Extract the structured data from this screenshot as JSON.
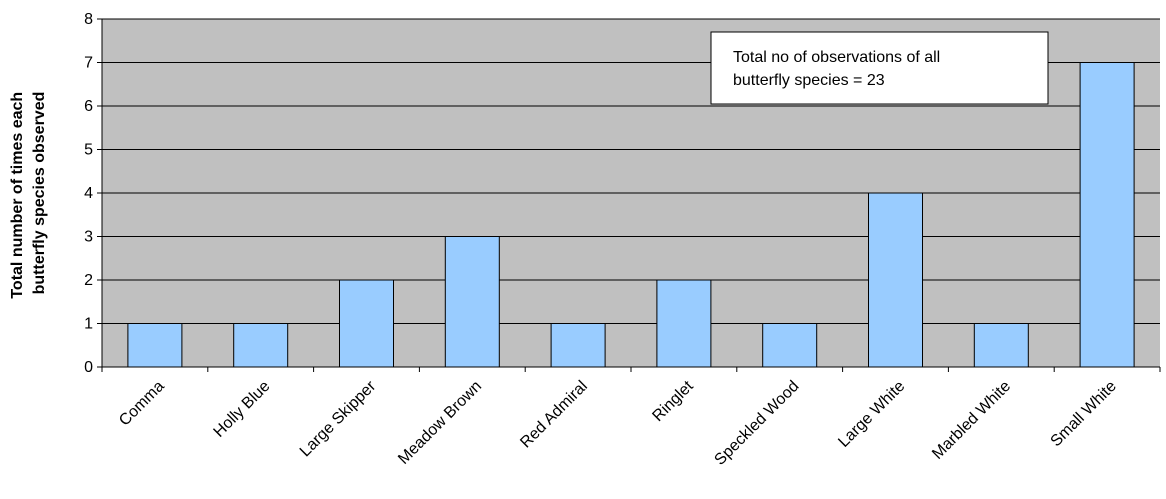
{
  "chart_data": {
    "type": "bar",
    "categories": [
      "Comma",
      "Holly Blue",
      "Large Skipper",
      "Meadow Brown",
      "Red Admiral",
      "Ringlet",
      "Speckled Wood",
      "Large White",
      "Marbled White",
      "Small White"
    ],
    "values": [
      1,
      1,
      2,
      3,
      1,
      2,
      1,
      4,
      1,
      7
    ],
    "ylabel_lines": [
      "Total number of times each",
      "butterfly species observed"
    ],
    "xlabel": "",
    "ylim": [
      0,
      8
    ],
    "yticks": [
      "0",
      "1",
      "2",
      "3",
      "4",
      "5",
      "6",
      "7",
      "8"
    ],
    "grid": true,
    "annotation_lines": [
      "Total no of observations of all",
      "butterfly species = 23"
    ],
    "colors": {
      "bar_fill": "#99ccff",
      "plot_background": "#c0c0c0",
      "gridline": "#000000"
    }
  }
}
